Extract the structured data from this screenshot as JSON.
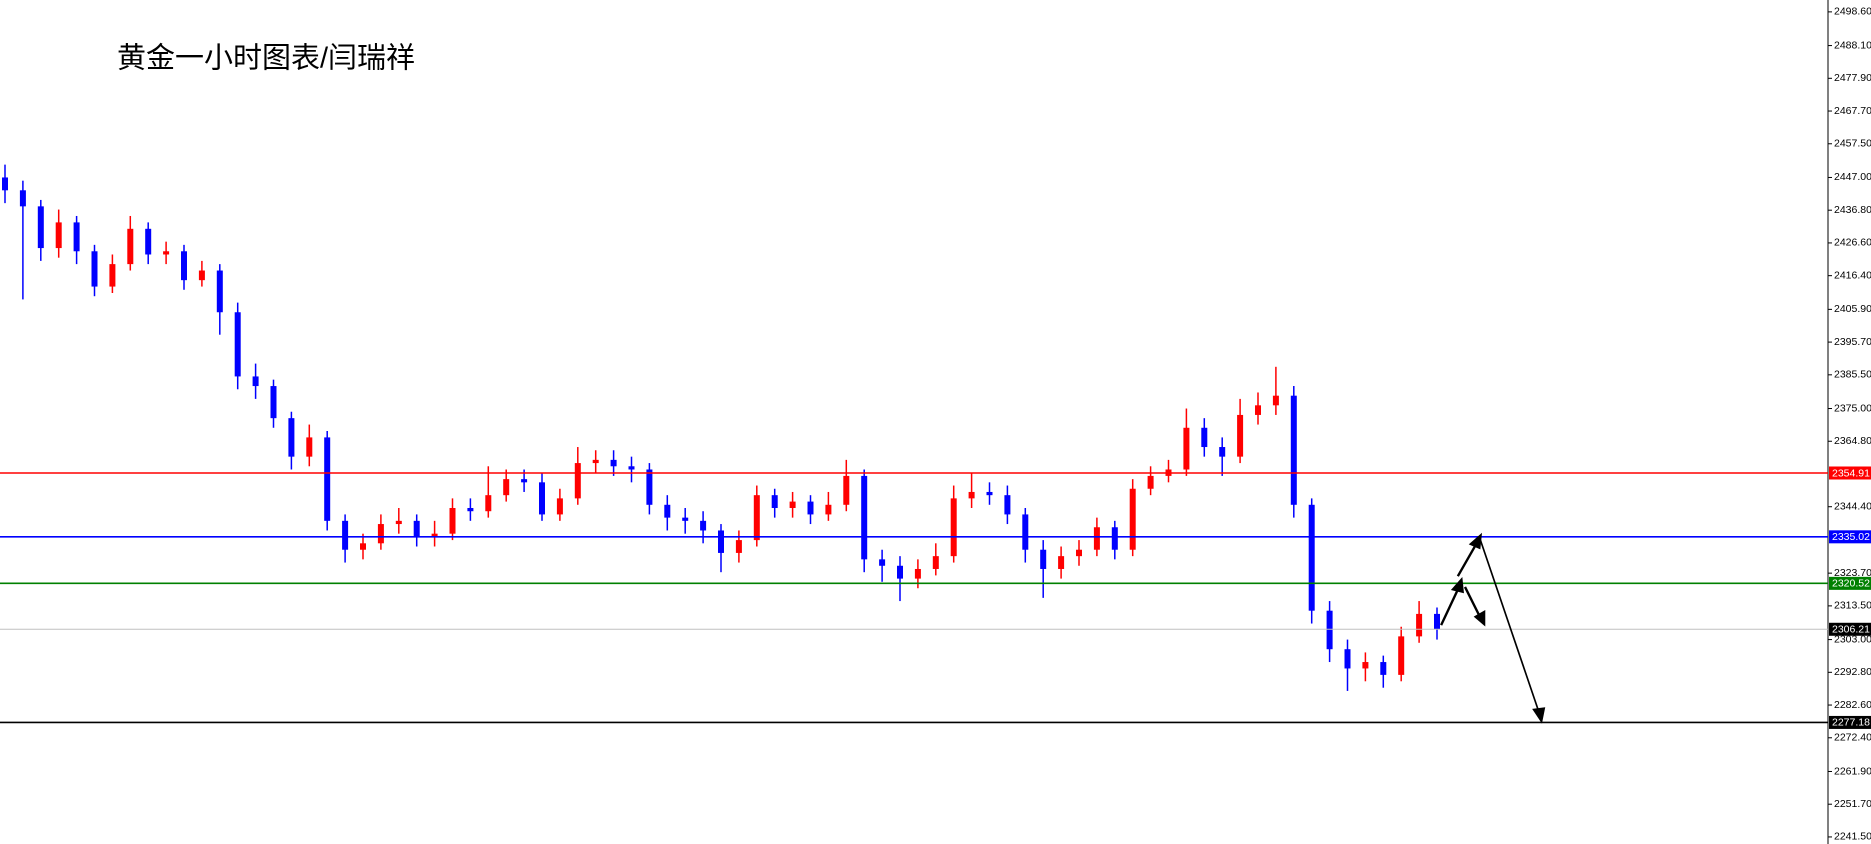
{
  "chart_data": {
    "type": "candlestick",
    "title": "黄金一小时图表/闫瑞祥",
    "ylim": [
      2239.3,
      2502.3
    ],
    "yticks": [
      {
        "value": 2498.6,
        "label": "2498.60"
      },
      {
        "value": 2488.1,
        "label": "2488.10"
      },
      {
        "value": 2477.9,
        "label": "2477.90"
      },
      {
        "value": 2467.7,
        "label": "2467.70"
      },
      {
        "value": 2457.5,
        "label": "2457.50"
      },
      {
        "value": 2447.0,
        "label": "2447.00"
      },
      {
        "value": 2436.8,
        "label": "2436.80"
      },
      {
        "value": 2426.6,
        "label": "2426.60"
      },
      {
        "value": 2416.4,
        "label": "2416.40"
      },
      {
        "value": 2405.9,
        "label": "2405.90"
      },
      {
        "value": 2395.7,
        "label": "2395.70"
      },
      {
        "value": 2385.5,
        "label": "2385.50"
      },
      {
        "value": 2375.0,
        "label": "2375.00"
      },
      {
        "value": 2364.8,
        "label": "2364.80"
      },
      {
        "value": 2344.4,
        "label": "2344.40"
      },
      {
        "value": 2323.7,
        "label": "2323.70"
      },
      {
        "value": 2313.5,
        "label": "2313.50"
      },
      {
        "value": 2303.0,
        "label": "2303.00"
      },
      {
        "value": 2292.8,
        "label": "2292.80"
      },
      {
        "value": 2282.6,
        "label": "2282.60"
      },
      {
        "value": 2272.4,
        "label": "2272.40"
      },
      {
        "value": 2261.9,
        "label": "2261.90"
      },
      {
        "value": 2251.7,
        "label": "2251.70"
      },
      {
        "value": 2241.5,
        "label": "2241.50"
      }
    ],
    "up_color": "#ff0000",
    "down_color": "#0000ff",
    "open": [
      2447,
      2443,
      2438,
      2425,
      2433,
      2424,
      2413,
      2420,
      2431,
      2423,
      2424,
      2415,
      2418,
      2405,
      2385,
      2382,
      2372,
      2360,
      2366,
      2340,
      2331,
      2333,
      2339,
      2340,
      2335,
      2336,
      2344,
      2343,
      2348,
      2353,
      2352,
      2342,
      2347,
      2358,
      2359,
      2357,
      2356,
      2345,
      2341,
      2340,
      2337,
      2330,
      2334,
      2348,
      2344,
      2346,
      2342,
      2345,
      2354,
      2328,
      2326,
      2322,
      2325,
      2329,
      2347,
      2349,
      2348,
      2342,
      2331,
      2325,
      2329,
      2331,
      2338,
      2331,
      2350,
      2354,
      2356,
      2369,
      2363,
      2360,
      2373,
      2376,
      2379,
      2345,
      2312,
      2300,
      2294,
      2296,
      2292,
      2304,
      2311
    ],
    "high": [
      2451,
      2446,
      2440,
      2437,
      2435,
      2426,
      2423,
      2435,
      2433,
      2427,
      2426,
      2421,
      2420,
      2408,
      2389,
      2384,
      2374,
      2370,
      2368,
      2342,
      2336,
      2342,
      2344,
      2342,
      2340,
      2347,
      2347,
      2357,
      2356,
      2356,
      2355,
      2350,
      2363,
      2362,
      2362,
      2360,
      2358,
      2348,
      2344,
      2343,
      2339,
      2337,
      2351,
      2350,
      2349,
      2348,
      2349,
      2359,
      2356,
      2331,
      2329,
      2328,
      2333,
      2351,
      2355,
      2352,
      2351,
      2344,
      2334,
      2332,
      2334,
      2341,
      2340,
      2353,
      2357,
      2359,
      2375,
      2372,
      2366,
      2378,
      2380,
      2388,
      2382,
      2347,
      2315,
      2303,
      2299,
      2298,
      2307,
      2315,
      2313
    ],
    "low": [
      2439,
      2409,
      2421,
      2422,
      2420,
      2410,
      2411,
      2418,
      2420,
      2420,
      2412,
      2413,
      2398,
      2381,
      2378,
      2369,
      2356,
      2357,
      2337,
      2327,
      2328,
      2331,
      2336,
      2332,
      2332,
      2334,
      2340,
      2341,
      2346,
      2349,
      2340,
      2340,
      2345,
      2355,
      2354,
      2352,
      2342,
      2337,
      2336,
      2333,
      2324,
      2327,
      2332,
      2341,
      2341,
      2339,
      2340,
      2343,
      2324,
      2321,
      2315,
      2319,
      2323,
      2327,
      2344,
      2345,
      2339,
      2327,
      2316,
      2322,
      2326,
      2329,
      2328,
      2329,
      2348,
      2352,
      2354,
      2360,
      2354,
      2358,
      2370,
      2373,
      2341,
      2308,
      2296,
      2287,
      2290,
      2288,
      2290,
      2302,
      2303
    ],
    "close": [
      2443,
      2438,
      2425,
      2433,
      2424,
      2413,
      2420,
      2431,
      2423,
      2424,
      2415,
      2418,
      2405,
      2385,
      2382,
      2372,
      2360,
      2366,
      2340,
      2331,
      2333,
      2339,
      2340,
      2335,
      2336,
      2344,
      2343,
      2348,
      2353,
      2352,
      2342,
      2347,
      2358,
      2359,
      2357,
      2356,
      2345,
      2341,
      2340,
      2337,
      2330,
      2334,
      2348,
      2344,
      2346,
      2342,
      2345,
      2354,
      2328,
      2326,
      2322,
      2325,
      2329,
      2347,
      2349,
      2348,
      2342,
      2331,
      2325,
      2329,
      2331,
      2338,
      2331,
      2350,
      2354,
      2356,
      2369,
      2363,
      2360,
      2373,
      2376,
      2379,
      2345,
      2312,
      2300,
      2294,
      2296,
      2292,
      2304,
      2311,
      2306.21
    ],
    "price_lines": [
      {
        "value": 2354.91,
        "color": "#ff0000"
      },
      {
        "value": 2335.02,
        "color": "#0000ff"
      },
      {
        "value": 2320.52,
        "color": "#008000"
      },
      {
        "value": 2306.21,
        "color": "#c0c0c0"
      },
      {
        "value": 2277.18,
        "color": "#000000"
      }
    ]
  }
}
